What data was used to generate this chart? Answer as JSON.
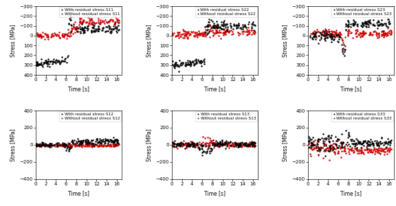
{
  "panels": [
    {
      "label_with": "With residual stress S11",
      "label_without": "Without residual stress S11",
      "ylim": [
        400,
        -300
      ],
      "yticks": [
        400,
        300,
        200,
        100,
        0,
        -100,
        -200,
        -300
      ]
    },
    {
      "label_with": "With residual stress S22",
      "label_without": "Without residual stress S22",
      "ylim": [
        400,
        -300
      ],
      "yticks": [
        400,
        300,
        200,
        100,
        0,
        -100,
        -200,
        -300
      ]
    },
    {
      "label_with": "With residual stress S23",
      "label_without": "Without residual stress S23",
      "ylim": [
        400,
        -300
      ],
      "yticks": [
        400,
        300,
        200,
        100,
        0,
        -100,
        -200,
        -300
      ]
    },
    {
      "label_with": "With residual stress S12",
      "label_without": "Without residual stress S12",
      "ylim": [
        -400,
        400
      ],
      "yticks": [
        -400,
        -200,
        0,
        200,
        400
      ]
    },
    {
      "label_with": "With residual stress S13",
      "label_without": "Without residual stress S13",
      "ylim": [
        -400,
        400
      ],
      "yticks": [
        -400,
        -200,
        0,
        200,
        400
      ]
    },
    {
      "label_with": "With residual stress S33",
      "label_without": "Without residual stress S33",
      "ylim": [
        -400,
        400
      ],
      "yticks": [
        -400,
        -200,
        0,
        200,
        400
      ]
    }
  ],
  "xlim": [
    0,
    17
  ],
  "xticks": [
    0,
    2,
    4,
    6,
    8,
    10,
    12,
    14,
    16
  ],
  "xlabel": "Time [s]",
  "ylabel": "Stress [MPa]",
  "color_with": "#000000",
  "color_without": "#cc0000",
  "markersize": 1.8,
  "fontsize_label": 5.5,
  "fontsize_tick": 5,
  "fontsize_legend": 4.2
}
